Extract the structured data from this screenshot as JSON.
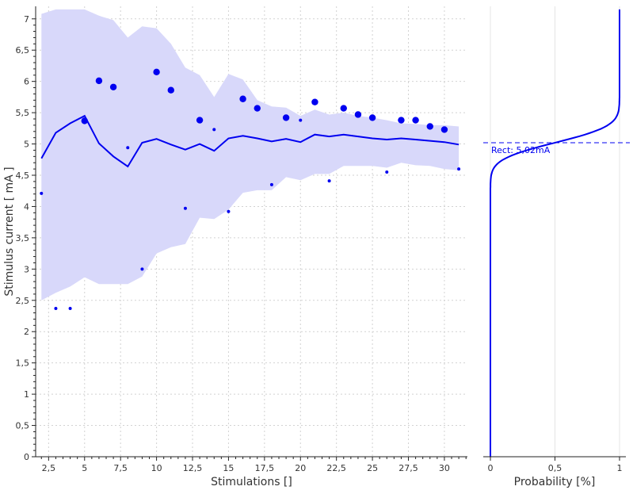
{
  "colors": {
    "series": "#0000f0",
    "band": "#d8d8fa",
    "grid": "#d2d2d2",
    "axis": "#222222"
  },
  "chart_data": [
    {
      "type": "scatter",
      "xlabel": "Stimulations []",
      "ylabel": "Stimulus current [ mA ]",
      "xlim": [
        1.6,
        31.6
      ],
      "ylim": [
        0,
        7.2
      ],
      "x_ticks": [
        "2,5",
        "5",
        "7,5",
        "10",
        "12,5",
        "15",
        "17,5",
        "20",
        "22,5",
        "25",
        "27,5",
        "30"
      ],
      "x_tick_values": [
        2.5,
        5,
        7.5,
        10,
        12.5,
        15,
        17.5,
        20,
        22.5,
        25,
        27.5,
        30
      ],
      "y_ticks": [
        "0",
        "0,5",
        "1",
        "1,5",
        "2",
        "2,5",
        "3",
        "3,5",
        "4",
        "4,5",
        "5",
        "5,5",
        "6",
        "6,5",
        "7"
      ],
      "y_tick_values": [
        0,
        0.5,
        1,
        1.5,
        2,
        2.5,
        3,
        3.5,
        4,
        4.5,
        5,
        5.5,
        6,
        6.5,
        7
      ],
      "grid": true,
      "series": [
        {
          "kind": "band",
          "x": [
            2,
            3,
            4,
            5,
            6,
            7,
            8,
            9,
            10,
            11,
            12,
            13,
            14,
            15,
            16,
            17,
            18,
            19,
            20,
            21,
            22,
            23,
            24,
            25,
            26,
            27,
            28,
            29,
            30,
            31
          ],
          "upper": [
            7.08,
            7.15,
            7.15,
            7.15,
            7.05,
            6.98,
            6.7,
            6.88,
            6.85,
            6.6,
            6.22,
            6.1,
            5.75,
            6.12,
            6.03,
            5.7,
            5.6,
            5.58,
            5.45,
            5.55,
            5.47,
            5.5,
            5.45,
            5.42,
            5.38,
            5.33,
            5.32,
            5.3,
            5.3,
            5.28
          ],
          "lower": [
            2.5,
            2.62,
            2.72,
            2.87,
            2.76,
            2.76,
            2.76,
            2.88,
            3.25,
            3.35,
            3.4,
            3.82,
            3.8,
            3.95,
            4.22,
            4.26,
            4.26,
            4.47,
            4.42,
            4.52,
            4.52,
            4.65,
            4.65,
            4.65,
            4.62,
            4.7,
            4.66,
            4.65,
            4.6,
            4.58
          ]
        },
        {
          "kind": "line",
          "x": [
            2,
            3,
            4,
            5,
            6,
            7,
            8,
            9,
            10,
            11,
            12,
            13,
            14,
            15,
            16,
            17,
            18,
            19,
            20,
            21,
            22,
            23,
            24,
            25,
            26,
            27,
            28,
            29,
            30,
            31
          ],
          "y": [
            4.77,
            5.18,
            5.33,
            5.45,
            5.01,
            4.8,
            4.64,
            5.02,
            5.08,
            4.99,
            4.91,
            5.0,
            4.89,
            5.09,
            5.13,
            5.09,
            5.04,
            5.08,
            5.03,
            5.15,
            5.12,
            5.15,
            5.12,
            5.09,
            5.07,
            5.09,
            5.07,
            5.05,
            5.03,
            4.99
          ]
        },
        {
          "kind": "points",
          "points": [
            {
              "x": 2,
              "y": 4.21,
              "size": "small"
            },
            {
              "x": 3,
              "y": 2.37,
              "size": "small"
            },
            {
              "x": 4,
              "y": 2.37,
              "size": "small"
            },
            {
              "x": 5,
              "y": 5.37,
              "size": "large"
            },
            {
              "x": 6,
              "y": 6.01,
              "size": "large"
            },
            {
              "x": 7,
              "y": 5.91,
              "size": "large"
            },
            {
              "x": 8,
              "y": 4.94,
              "size": "small"
            },
            {
              "x": 9,
              "y": 3.0,
              "size": "small"
            },
            {
              "x": 10,
              "y": 6.15,
              "size": "large"
            },
            {
              "x": 11,
              "y": 5.86,
              "size": "large"
            },
            {
              "x": 12,
              "y": 3.97,
              "size": "small"
            },
            {
              "x": 13,
              "y": 5.38,
              "size": "large"
            },
            {
              "x": 14,
              "y": 5.23,
              "size": "small"
            },
            {
              "x": 15,
              "y": 3.92,
              "size": "small"
            },
            {
              "x": 16,
              "y": 5.72,
              "size": "large"
            },
            {
              "x": 17,
              "y": 5.57,
              "size": "large"
            },
            {
              "x": 18,
              "y": 4.35,
              "size": "small"
            },
            {
              "x": 19,
              "y": 5.42,
              "size": "large"
            },
            {
              "x": 20,
              "y": 5.38,
              "size": "small"
            },
            {
              "x": 21,
              "y": 5.67,
              "size": "large"
            },
            {
              "x": 22,
              "y": 4.41,
              "size": "small"
            },
            {
              "x": 23,
              "y": 5.57,
              "size": "large"
            },
            {
              "x": 24,
              "y": 5.47,
              "size": "large"
            },
            {
              "x": 25,
              "y": 5.42,
              "size": "large"
            },
            {
              "x": 26,
              "y": 4.55,
              "size": "small"
            },
            {
              "x": 27,
              "y": 5.38,
              "size": "large"
            },
            {
              "x": 28,
              "y": 5.38,
              "size": "large"
            },
            {
              "x": 29,
              "y": 5.28,
              "size": "large"
            },
            {
              "x": 30,
              "y": 5.23,
              "size": "large"
            },
            {
              "x": 31,
              "y": 4.6,
              "size": "small"
            }
          ]
        }
      ]
    },
    {
      "type": "line",
      "xlabel": "Probability [%]",
      "ylabel": "",
      "xlim": [
        0,
        1.05
      ],
      "ylim": [
        0,
        7.2
      ],
      "x_ticks": [
        "0",
        "0,5",
        "1"
      ],
      "x_tick_values": [
        0,
        0.5,
        1
      ],
      "grid": true,
      "curve": {
        "kind": "normal-cdf",
        "mean": 5.02,
        "sd": 0.21
      },
      "threshold": {
        "value": 5.02,
        "label": "Rect: 5,02mA"
      }
    }
  ]
}
